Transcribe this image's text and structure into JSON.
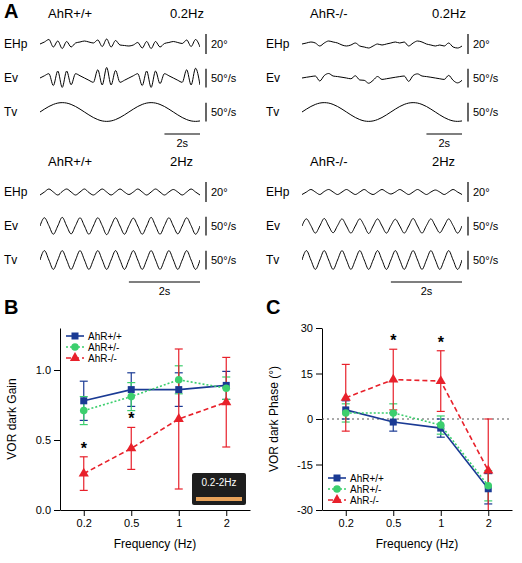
{
  "chart_data": [
    {
      "type": "line",
      "panel_label": "A",
      "title": "AhR+/+",
      "subtitle": "0.2Hz",
      "tick_labels": false,
      "x": [
        0,
        0.25,
        0.5,
        0.75,
        1,
        1.25,
        1.5,
        1.75,
        2,
        2.25,
        2.5,
        2.75,
        3,
        3.25,
        3.5,
        3.75,
        4,
        4.25,
        4.5,
        4.75,
        5,
        5.25,
        5.5,
        5.75,
        6,
        6.25,
        6.5,
        6.75,
        7,
        7.25,
        7.5,
        7.75,
        8,
        8.25,
        8.5,
        8.75,
        9
      ],
      "xlim": [
        0,
        9
      ],
      "time_bar": {
        "value": 2,
        "label": "2s"
      },
      "series": [
        {
          "name": "EHp",
          "color": "#000000",
          "ylim": [
            -15,
            15
          ],
          "scale_bar": {
            "value": 20,
            "label": "20°"
          },
          "values": [
            0,
            2,
            4.5,
            -3,
            3,
            -4.5,
            2.5,
            -3,
            1,
            2,
            3,
            2,
            1,
            4,
            -2.5,
            5,
            -3,
            3.5,
            -1,
            -1.5,
            -2,
            -1,
            1.5,
            -4,
            2.5,
            -4.5,
            2.5,
            -3,
            0.5,
            1.5,
            2.5,
            1.5,
            0.5,
            4,
            -2.5,
            4.5,
            -3
          ]
        },
        {
          "name": "Ev",
          "color": "#000000",
          "ylim": [
            -40,
            40
          ],
          "scale_bar": {
            "value": 50,
            "label": "50°/s"
          },
          "values": [
            0,
            6,
            11.5,
            -20,
            18.6,
            -25,
            18.6,
            -18,
            11.5,
            6,
            0,
            -6,
            -11.5,
            22,
            -18.6,
            28,
            -18.6,
            20,
            -11.5,
            -6,
            0,
            6,
            11.5,
            -20,
            18.6,
            -25,
            18.6,
            -15,
            11.5,
            6,
            0,
            -6,
            -11.5,
            22,
            -18.6,
            26,
            -18.6
          ]
        },
        {
          "name": "Tv",
          "color": "#000000",
          "ylim": [
            -40,
            40
          ],
          "scale_bar": {
            "value": 50,
            "label": "50°/s"
          },
          "values": [
            0,
            7.7,
            14.7,
            20.2,
            23.8,
            25,
            23.8,
            20.2,
            14.7,
            7.7,
            0,
            -7.7,
            -14.7,
            -20.2,
            -23.8,
            -25,
            -23.8,
            -20.2,
            -14.7,
            -7.7,
            0,
            7.7,
            14.7,
            20.2,
            23.8,
            25,
            23.8,
            20.2,
            14.7,
            7.7,
            0,
            -7.7,
            -14.7,
            -20.2,
            -23.8,
            -25,
            -23.8
          ]
        }
      ]
    },
    {
      "type": "line",
      "title": "AhR-/-",
      "subtitle": "0.2Hz",
      "tick_labels": false,
      "x": [
        0,
        0.25,
        0.5,
        0.75,
        1,
        1.25,
        1.5,
        1.75,
        2,
        2.25,
        2.5,
        2.75,
        3,
        3.25,
        3.5,
        3.75,
        4,
        4.25,
        4.5,
        4.75,
        5,
        5.25,
        5.5,
        5.75,
        6,
        6.25,
        6.5,
        6.75,
        7,
        7.25,
        7.5,
        7.75,
        8,
        8.25,
        8.5,
        8.75,
        9
      ],
      "xlim": [
        0,
        9
      ],
      "time_bar": {
        "value": 2,
        "label": "2s"
      },
      "series": [
        {
          "name": "EHp",
          "color": "#000000",
          "ylim": [
            -15,
            15
          ],
          "scale_bar": {
            "value": 20,
            "label": "20°"
          },
          "values": [
            0,
            1,
            2,
            1,
            -2,
            1,
            3,
            2,
            1,
            -1,
            -2,
            -1,
            1,
            -2,
            -3,
            -4,
            -2,
            0,
            -1,
            0,
            1,
            2,
            1,
            2,
            -2,
            1,
            3,
            2,
            0,
            -1,
            -2,
            -1,
            -2,
            1,
            -3,
            -4,
            -2
          ]
        },
        {
          "name": "Ev",
          "color": "#000000",
          "ylim": [
            -40,
            40
          ],
          "scale_bar": {
            "value": 50,
            "label": "50°/s"
          },
          "values": [
            0,
            2,
            3.8,
            5.3,
            -8,
            6.5,
            12,
            5.3,
            3.8,
            2,
            0,
            -2,
            6,
            -5.3,
            -6.2,
            -14,
            -6.2,
            4,
            -3.8,
            -2,
            0,
            2,
            3.8,
            5.3,
            -9,
            6.5,
            11,
            5.3,
            3.8,
            2,
            0,
            -2,
            -3.8,
            7,
            -6.2,
            -13,
            -6.2
          ]
        },
        {
          "name": "Tv",
          "color": "#000000",
          "ylim": [
            -40,
            40
          ],
          "scale_bar": {
            "value": 50,
            "label": "50°/s"
          },
          "values": [
            0,
            7.7,
            14.7,
            20.2,
            23.8,
            25,
            23.8,
            20.2,
            14.7,
            7.7,
            0,
            -7.7,
            -14.7,
            -20.2,
            -23.8,
            -25,
            -23.8,
            -20.2,
            -14.7,
            -7.7,
            0,
            7.7,
            14.7,
            20.2,
            23.8,
            25,
            23.8,
            20.2,
            14.7,
            7.7,
            0,
            -7.7,
            -14.7,
            -20.2,
            -23.8,
            -25,
            -23.8
          ]
        }
      ]
    },
    {
      "type": "line",
      "title": "AhR+/+",
      "subtitle": "2Hz",
      "tick_labels": false,
      "x": [
        0,
        0.125,
        0.25,
        0.375,
        0.5,
        0.625,
        0.75,
        0.875,
        1,
        1.125,
        1.25,
        1.375,
        1.5,
        1.625,
        1.75,
        1.875,
        2,
        2.125,
        2.25,
        2.375,
        2.5,
        2.625,
        2.75,
        2.875,
        3,
        3.125,
        3.25,
        3.375,
        3.5,
        3.625,
        3.75,
        3.875,
        4,
        4.125,
        4.25,
        4.375,
        4.5
      ],
      "xlim": [
        0,
        4.5
      ],
      "time_bar": {
        "value": 2,
        "label": "2s"
      },
      "series": [
        {
          "name": "EHp",
          "color": "#000000",
          "ylim": [
            -15,
            15
          ],
          "scale_bar": {
            "value": 20,
            "label": "20°"
          },
          "values": [
            -3,
            0,
            3,
            0,
            -3,
            0.5,
            3,
            0,
            -3,
            0,
            3,
            -0.5,
            -3,
            0,
            3,
            0,
            -3,
            0,
            3,
            0,
            -2.5,
            0,
            3,
            0,
            -3,
            0,
            3,
            0,
            -3,
            0,
            2.5,
            0,
            -3,
            0,
            3,
            0,
            -3
          ]
        },
        {
          "name": "Ev",
          "color": "#000000",
          "ylim": [
            -40,
            40
          ],
          "scale_bar": {
            "value": 50,
            "label": "50°/s"
          },
          "values": [
            0,
            22,
            1,
            -22,
            0,
            23,
            0,
            -21,
            1,
            22,
            0,
            -22,
            0,
            22,
            1,
            -23,
            0,
            22,
            0,
            -22,
            1,
            21,
            0,
            -22,
            0,
            23,
            0,
            -22,
            1,
            22,
            0,
            -21,
            0,
            22,
            1,
            -22,
            0
          ]
        },
        {
          "name": "Tv",
          "color": "#000000",
          "ylim": [
            -40,
            40
          ],
          "scale_bar": {
            "value": 50,
            "label": "50°/s"
          },
          "values": [
            0,
            25,
            0,
            -25,
            0,
            25,
            0,
            -25,
            0,
            25,
            0,
            -25,
            0,
            25,
            0,
            -25,
            0,
            25,
            0,
            -25,
            0,
            25,
            0,
            -25,
            0,
            25,
            0,
            -25,
            0,
            25,
            0,
            -25,
            0,
            25,
            0,
            -25,
            0
          ]
        }
      ]
    },
    {
      "type": "line",
      "title": "AhR-/-",
      "subtitle": "2Hz",
      "tick_labels": false,
      "x": [
        0,
        0.125,
        0.25,
        0.375,
        0.5,
        0.625,
        0.75,
        0.875,
        1,
        1.125,
        1.25,
        1.375,
        1.5,
        1.625,
        1.75,
        1.875,
        2,
        2.125,
        2.25,
        2.375,
        2.5,
        2.625,
        2.75,
        2.875,
        3,
        3.125,
        3.25,
        3.375,
        3.5,
        3.625,
        3.75,
        3.875,
        4,
        4.125,
        4.25,
        4.375,
        4.5
      ],
      "xlim": [
        0,
        4.5
      ],
      "time_bar": {
        "value": 2,
        "label": "2s"
      },
      "series": [
        {
          "name": "EHp",
          "color": "#000000",
          "ylim": [
            -15,
            15
          ],
          "scale_bar": {
            "value": 20,
            "label": "20°"
          },
          "values": [
            -2.5,
            0,
            2.5,
            0,
            -2.5,
            0.5,
            2.5,
            0,
            -2.5,
            0,
            2.5,
            0,
            -2.5,
            0,
            2.5,
            -0.5,
            -2.5,
            0,
            2.5,
            0,
            -2,
            0,
            2.5,
            0,
            -2.5,
            0,
            2.5,
            0,
            -2.5,
            0,
            2,
            0,
            -2.5,
            0,
            2.5,
            0,
            -2.5
          ]
        },
        {
          "name": "Ev",
          "color": "#000000",
          "ylim": [
            -40,
            40
          ],
          "scale_bar": {
            "value": 50,
            "label": "50°/s"
          },
          "values": [
            0,
            19,
            1,
            -19,
            0,
            20,
            0,
            -18,
            1,
            19,
            0,
            -19,
            0,
            19,
            1,
            -20,
            0,
            19,
            0,
            -19,
            1,
            18,
            0,
            -19,
            0,
            20,
            0,
            -19,
            1,
            19,
            0,
            -18,
            0,
            19,
            1,
            -19,
            0
          ]
        },
        {
          "name": "Tv",
          "color": "#000000",
          "ylim": [
            -40,
            40
          ],
          "scale_bar": {
            "value": 50,
            "label": "50°/s"
          },
          "values": [
            0,
            25,
            0,
            -25,
            0,
            25,
            0,
            -25,
            0,
            25,
            0,
            -25,
            0,
            25,
            0,
            -25,
            0,
            25,
            0,
            -25,
            0,
            25,
            0,
            -25,
            0,
            25,
            0,
            -25,
            0,
            25,
            0,
            -25,
            0,
            25,
            0,
            -25,
            0
          ]
        }
      ]
    },
    {
      "type": "line",
      "panel_label": "B",
      "x_label": "Frequency (Hz)",
      "y_label": "VOR dark Gain",
      "categories": [
        "0.2",
        "0.5",
        "1",
        "2"
      ],
      "ylim": [
        0,
        1.3
      ],
      "yticks": [
        {
          "value": 0,
          "label": "0.0"
        },
        0.5,
        {
          "value": 1,
          "label": "1.0"
        }
      ],
      "legend": "top-left",
      "inset_label": "0.2-2Hz",
      "series": [
        {
          "name": "AhR+/+",
          "color": "#1a3a94",
          "marker": "square",
          "line_style": "solid",
          "values": [
            0.78,
            0.86,
            0.86,
            0.89
          ],
          "errors": [
            0.14,
            0.12,
            0.12,
            0.1
          ]
        },
        {
          "name": "AhR+/-",
          "color": "#3ccf6e",
          "marker": "circle",
          "line_style": "dotted",
          "values": [
            0.71,
            0.81,
            0.93,
            0.87
          ],
          "errors": [
            0.1,
            0.1,
            0.1,
            0.08
          ]
        },
        {
          "name": "AhR-/-",
          "color": "#e8212b",
          "marker": "triangle",
          "line_style": "dashed",
          "values": [
            0.26,
            0.44,
            0.65,
            0.77
          ],
          "errors": [
            0.12,
            0.15,
            0.5,
            0.32
          ]
        }
      ],
      "annotations": [
        {
          "text": "*",
          "x": "0.2",
          "series": "AhR-/-"
        },
        {
          "text": "*",
          "x": "0.5",
          "series": "AhR-/-"
        }
      ]
    },
    {
      "type": "line",
      "panel_label": "C",
      "x_label": "Frequency (Hz)",
      "y_label": "VOR dark Phase (°)",
      "categories": [
        "0.2",
        "0.5",
        "1",
        "2"
      ],
      "ylim": [
        -30,
        30
      ],
      "yticks": [
        -30,
        -15,
        0,
        15,
        30
      ],
      "legend": "bottom-left",
      "hline": 0,
      "series": [
        {
          "name": "AhR+/+",
          "color": "#1a3a94",
          "marker": "square",
          "line_style": "solid",
          "values": [
            3,
            -1,
            -3,
            -23
          ],
          "errors": [
            3,
            3,
            3,
            5
          ]
        },
        {
          "name": "AhR+/-",
          "color": "#3ccf6e",
          "marker": "circle",
          "line_style": "dotted",
          "values": [
            2,
            2,
            -2,
            -22
          ],
          "errors": [
            3,
            3,
            3,
            5
          ]
        },
        {
          "name": "AhR-/-",
          "color": "#e8212b",
          "marker": "triangle",
          "line_style": "dashed",
          "values": [
            7,
            13,
            12.5,
            -17
          ],
          "errors": [
            11,
            10,
            10,
            17
          ]
        }
      ],
      "annotations": [
        {
          "text": "*",
          "x": "0.5",
          "series": "AhR-/-"
        },
        {
          "text": "*",
          "x": "1",
          "series": "AhR-/-"
        }
      ]
    }
  ]
}
